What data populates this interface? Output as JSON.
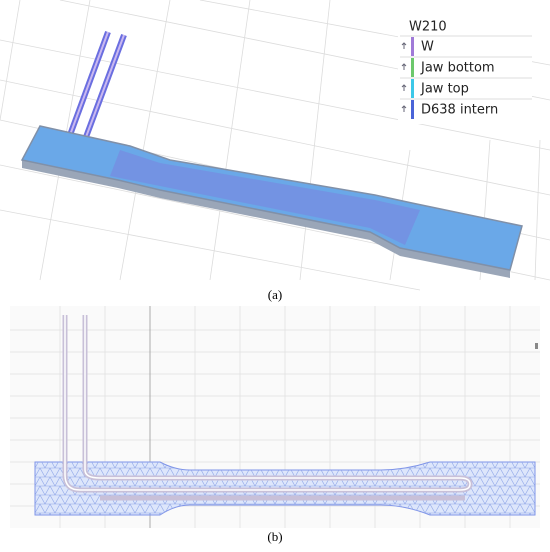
{
  "panel_a": {
    "caption": "(a)",
    "legend": {
      "title": "W210",
      "items": [
        {
          "label": "W",
          "color": "#a07ad8"
        },
        {
          "label": "Jaw bottom",
          "color": "#6cc86c"
        },
        {
          "label": "Jaw top",
          "color": "#3cc8e8"
        },
        {
          "label": "D638 intern",
          "color": "#4a64d8"
        }
      ]
    }
  },
  "panel_b": {
    "caption": "(b)"
  }
}
